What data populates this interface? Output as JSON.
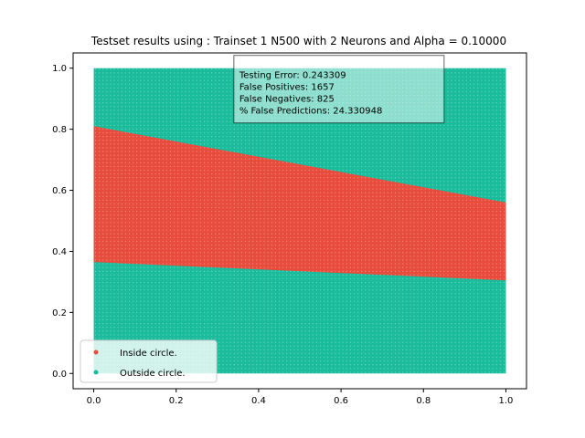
{
  "chart_data": {
    "type": "scatter",
    "title": "Testset results using : Trainset 1 N500 with 2 Neurons and Alpha = 0.10000",
    "xlabel": "",
    "ylabel": "",
    "xlim": [
      -0.05,
      1.05
    ],
    "ylim": [
      -0.05,
      1.05
    ],
    "xticks": [
      "0.0",
      "0.2",
      "0.4",
      "0.6",
      "0.8",
      "1.0"
    ],
    "yticks": [
      "0.0",
      "0.2",
      "0.4",
      "0.6",
      "0.8",
      "1.0"
    ],
    "grid": false,
    "legend_position": "lower-left",
    "colors": {
      "inside": "#e74c3c",
      "outside": "#1abc9c"
    },
    "series": [
      {
        "name": "Inside circle.",
        "color": "#e74c3c",
        "region": {
          "x_range": [
            0.0,
            1.0
          ],
          "upper_boundary": {
            "x": [
              0.0,
              1.0
            ],
            "y": [
              0.81,
              0.56
            ]
          },
          "lower_boundary": {
            "x": [
              0.0,
              1.0
            ],
            "y": [
              0.365,
              0.305
            ]
          }
        }
      },
      {
        "name": "Outside circle.",
        "color": "#1abc9c",
        "region": {
          "x_range": [
            0.0,
            1.0
          ],
          "y_range": [
            0.0,
            1.0
          ],
          "excludes": "Inside circle."
        }
      }
    ],
    "annotation": {
      "lines": [
        "Testing Error: 0.243309",
        "False Positives: 1657",
        "False Negatives: 825",
        "% False Predictions: 24.330948"
      ],
      "anchor": [
        0.34,
        1.0
      ]
    }
  }
}
